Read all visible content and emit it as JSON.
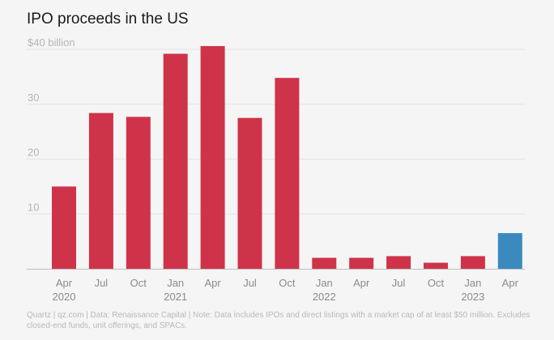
{
  "chart_data": {
    "type": "bar",
    "title": "IPO proceeds in the US",
    "ytick_labels": [
      "$40 billion",
      "30",
      "20",
      "10"
    ],
    "yticks": [
      40,
      30,
      20,
      10
    ],
    "ylim": [
      0,
      40
    ],
    "grid": true,
    "categories": [
      "Q2 2020",
      "Q3 2020",
      "Q4 2020",
      "Q1 2021",
      "Q2 2021",
      "Q3 2021",
      "Q4 2021",
      "Q1 2022",
      "Q2 2022",
      "Q3 2022",
      "Q4 2022",
      "Q1 2023",
      "Q2 2023"
    ],
    "xtick_labels": [
      {
        "label": "Apr",
        "year": "2020"
      },
      {
        "label": "Jul",
        "year": ""
      },
      {
        "label": "Oct",
        "year": ""
      },
      {
        "label": "Jan",
        "year": "2021"
      },
      {
        "label": "Apr",
        "year": ""
      },
      {
        "label": "Jul",
        "year": ""
      },
      {
        "label": "Oct",
        "year": ""
      },
      {
        "label": "Jan",
        "year": "2022"
      },
      {
        "label": "Apr",
        "year": ""
      },
      {
        "label": "Jul",
        "year": ""
      },
      {
        "label": "Oct",
        "year": ""
      },
      {
        "label": "Jan",
        "year": "2023"
      },
      {
        "label": "Apr",
        "year": ""
      }
    ],
    "values": [
      15.0,
      28.4,
      27.7,
      39.2,
      40.6,
      27.5,
      34.8,
      2.0,
      2.0,
      2.3,
      1.1,
      2.3,
      6.5
    ],
    "highlight_index": 12,
    "colors": {
      "bar": "#cf3349",
      "highlight": "#3a8abf",
      "grid": "#e3e3e3",
      "axis": "#bdbdbd",
      "tick_text": "#8a8a8a",
      "ytick_text": "#b5b5b5"
    }
  },
  "footnote": "Quartz | qz.com | Data: Renaissance Capital | Note: Data includes IPOs and direct listings with a market cap of at least $50 million. Excludes closed-end funds, unit offerings, and SPACs."
}
